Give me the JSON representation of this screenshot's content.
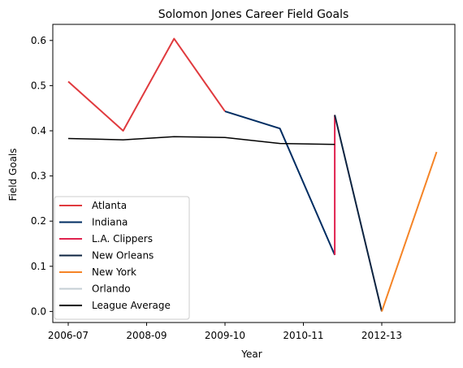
{
  "chart_data": {
    "type": "line",
    "title": "Solomon Jones  Career Field Goals",
    "xlabel": "Year",
    "ylabel": "Field Goals",
    "ylim": [
      -0.03,
      0.635
    ],
    "x_ticks": [
      "2006-07",
      "2008-09",
      "2009-10",
      "2010-11",
      "2012-13"
    ],
    "y_ticks": [
      "0.0",
      "0.1",
      "0.2",
      "0.3",
      "0.4",
      "0.5",
      "0.6"
    ],
    "legend_position": "lower-left",
    "grid": false,
    "series": [
      {
        "name": "Atlanta",
        "color": "#e03a3e",
        "points": [
          [
            0.0,
            0.509
          ],
          [
            0.7,
            0.4
          ],
          [
            1.35,
            0.604
          ],
          [
            2.0,
            0.443
          ]
        ]
      },
      {
        "name": "Indiana",
        "color": "#002d62",
        "points": [
          [
            2.0,
            0.443
          ],
          [
            2.7,
            0.405
          ],
          [
            3.4,
            0.125
          ]
        ]
      },
      {
        "name": "L.A. Clippers",
        "color": "#e0234e",
        "points": [
          [
            3.4,
            0.125
          ],
          [
            3.4,
            0.435
          ]
        ]
      },
      {
        "name": "New Orleans",
        "color": "#0c2340",
        "points": [
          [
            3.4,
            0.435
          ],
          [
            4.0,
            0.0
          ]
        ]
      },
      {
        "name": "New York",
        "color": "#f58426",
        "points": [
          [
            4.0,
            0.0
          ],
          [
            4.7,
            0.353
          ]
        ]
      },
      {
        "name": "Orlando",
        "color": "#c4ced4",
        "points": []
      },
      {
        "name": "League Average",
        "color": "#000000",
        "points": [
          [
            0.0,
            0.383
          ],
          [
            0.7,
            0.38
          ],
          [
            1.35,
            0.387
          ],
          [
            2.0,
            0.385
          ],
          [
            2.7,
            0.372
          ],
          [
            3.4,
            0.37
          ]
        ]
      }
    ]
  }
}
